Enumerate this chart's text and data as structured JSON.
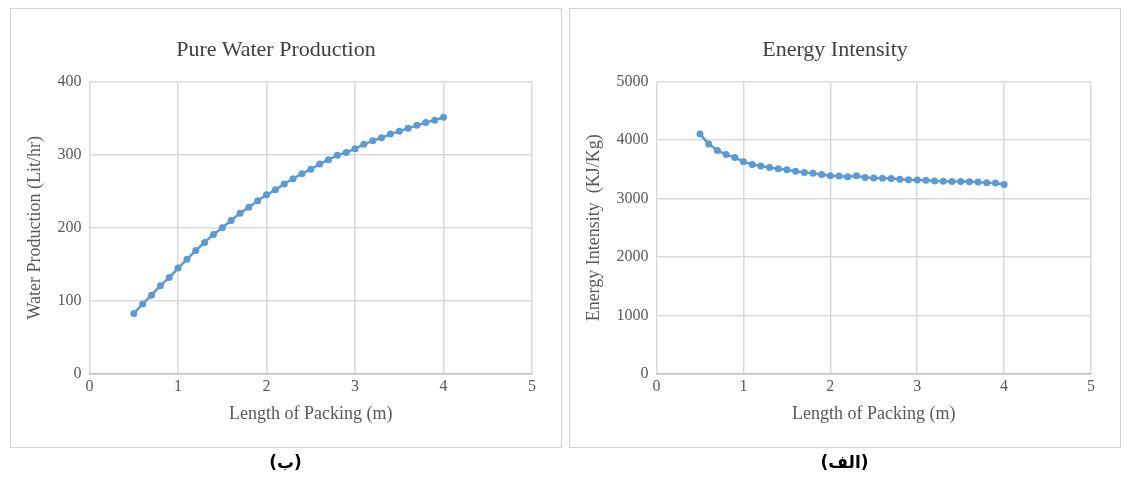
{
  "chart_data": [
    {
      "type": "line",
      "title": "Pure Water Production",
      "xlabel": "Length of Packing (m)",
      "ylabel": "Water Production (Lit/hr)",
      "annotations": [
        "(ب)"
      ],
      "marker": "circle",
      "grid": true,
      "legend": false,
      "xlim": [
        0,
        5
      ],
      "xticks": [
        0,
        1,
        2,
        3,
        4,
        5
      ],
      "ylim": [
        0,
        400
      ],
      "yticks": [
        0,
        100,
        200,
        300,
        400
      ],
      "x": [
        0.5,
        0.6,
        0.7,
        0.8,
        0.9,
        1.0,
        1.1,
        1.2,
        1.3,
        1.4,
        1.5,
        1.6,
        1.7,
        1.8,
        1.9,
        2.0,
        2.1,
        2.2,
        2.3,
        2.4,
        2.5,
        2.6,
        2.7,
        2.8,
        2.9,
        3.0,
        3.1,
        3.2,
        3.3,
        3.4,
        3.5,
        3.6,
        3.7,
        3.8,
        3.9,
        4.0
      ],
      "series": [
        {
          "color": "#5b9bd5",
          "values": [
            83,
            96,
            108,
            121,
            132,
            145,
            157,
            169,
            180,
            191,
            200,
            210,
            220,
            228,
            237,
            245,
            252,
            260,
            267,
            274,
            280,
            287,
            293,
            299,
            303,
            308,
            314,
            319,
            323,
            328,
            332,
            336,
            340,
            344,
            347,
            351
          ]
        }
      ]
    },
    {
      "type": "line",
      "title": "Energy Intensity",
      "xlabel": "Length of Packing (m)",
      "ylabel": "Energy Intensity  (KJ/Kg)",
      "annotations": [
        "(الف)"
      ],
      "marker": "circle",
      "grid": true,
      "legend": false,
      "xlim": [
        0,
        5
      ],
      "xticks": [
        0,
        1,
        2,
        3,
        4,
        5
      ],
      "ylim": [
        0,
        5000
      ],
      "yticks": [
        0,
        1000,
        2000,
        3000,
        4000,
        5000
      ],
      "x": [
        0.5,
        0.6,
        0.7,
        0.8,
        0.9,
        1.0,
        1.1,
        1.2,
        1.3,
        1.4,
        1.5,
        1.6,
        1.7,
        1.8,
        1.9,
        2.0,
        2.1,
        2.2,
        2.3,
        2.4,
        2.5,
        2.6,
        2.7,
        2.8,
        2.9,
        3.0,
        3.1,
        3.2,
        3.3,
        3.4,
        3.5,
        3.6,
        3.7,
        3.8,
        3.9,
        4.0
      ],
      "series": [
        {
          "color": "#5b9bd5",
          "values": [
            4100,
            3930,
            3820,
            3750,
            3700,
            3630,
            3580,
            3555,
            3530,
            3510,
            3490,
            3465,
            3445,
            3430,
            3410,
            3390,
            3385,
            3370,
            3390,
            3360,
            3350,
            3345,
            3340,
            3330,
            3320,
            3315,
            3310,
            3300,
            3295,
            3290,
            3290,
            3285,
            3280,
            3270,
            3265,
            3240
          ]
        }
      ]
    }
  ]
}
